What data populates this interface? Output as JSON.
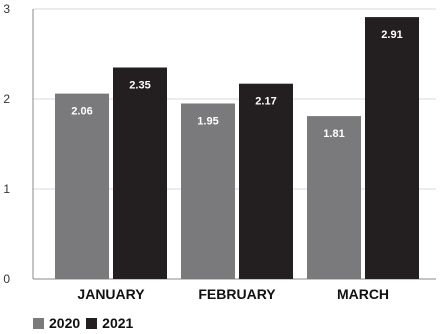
{
  "chart_data": {
    "type": "bar",
    "categories": [
      "JANUARY",
      "FEBRUARY",
      "MARCH"
    ],
    "series": [
      {
        "name": "2020",
        "values": [
          2.06,
          1.95,
          1.81
        ],
        "color": "#7a7a7c"
      },
      {
        "name": "2021",
        "values": [
          2.35,
          2.17,
          2.91
        ],
        "color": "#231f20"
      }
    ],
    "ylim": [
      0,
      3
    ],
    "yticks": [
      "0",
      "1",
      "2",
      "3"
    ],
    "grid": true,
    "legend_position": "bottom-left"
  }
}
